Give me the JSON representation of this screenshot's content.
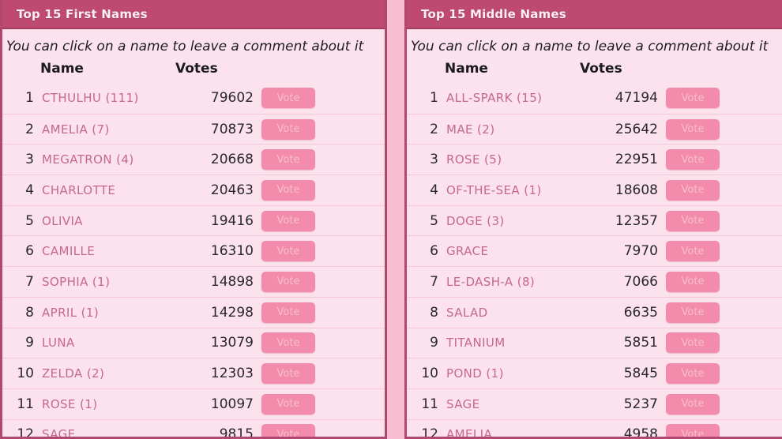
{
  "colors": {
    "page_background": "#f8bdd1",
    "panel_background": "#fbe2ec",
    "panel_border": "#b1486f",
    "header_bar": "#be4a72",
    "header_text": "#fceff5",
    "name_text": "#c6688d",
    "number_text": "#28282d",
    "row_divider": "#f3c6d8",
    "vote_button_bg": "#f28bac",
    "vote_button_text": "#f9bdcf"
  },
  "panels": [
    {
      "title": "Top 15 First Names",
      "instruction": "You can click on a name to leave a comment about it",
      "columns": {
        "name": "Name",
        "votes": "Votes"
      },
      "vote_button_label": "Vote",
      "rows": [
        {
          "rank": "1",
          "name": "CTHULHU (111)",
          "votes": "79602"
        },
        {
          "rank": "2",
          "name": "AMELIA (7)",
          "votes": "70873"
        },
        {
          "rank": "3",
          "name": "MEGATRON (4)",
          "votes": "20668"
        },
        {
          "rank": "4",
          "name": "CHARLOTTE",
          "votes": "20463"
        },
        {
          "rank": "5",
          "name": "OLIVIA",
          "votes": "19416"
        },
        {
          "rank": "6",
          "name": "CAMILLE",
          "votes": "16310"
        },
        {
          "rank": "7",
          "name": "SOPHIA (1)",
          "votes": "14898"
        },
        {
          "rank": "8",
          "name": "APRIL (1)",
          "votes": "14298"
        },
        {
          "rank": "9",
          "name": "LUNA",
          "votes": "13079"
        },
        {
          "rank": "10",
          "name": "ZELDA (2)",
          "votes": "12303"
        },
        {
          "rank": "11",
          "name": "ROSE (1)",
          "votes": "10097"
        },
        {
          "rank": "12",
          "name": "SAGE",
          "votes": "9815"
        }
      ]
    },
    {
      "title": "Top 15 Middle Names",
      "instruction": "You can click on a name to leave a comment about it",
      "columns": {
        "name": "Name",
        "votes": "Votes"
      },
      "vote_button_label": "Vote",
      "rows": [
        {
          "rank": "1",
          "name": "ALL-SPARK (15)",
          "votes": "47194"
        },
        {
          "rank": "2",
          "name": "MAE (2)",
          "votes": "25642"
        },
        {
          "rank": "3",
          "name": "ROSE (5)",
          "votes": "22951"
        },
        {
          "rank": "4",
          "name": "OF-THE-SEA (1)",
          "votes": "18608"
        },
        {
          "rank": "5",
          "name": "DOGE (3)",
          "votes": "12357"
        },
        {
          "rank": "6",
          "name": "GRACE",
          "votes": "7970"
        },
        {
          "rank": "7",
          "name": "LE-DASH-A (8)",
          "votes": "7066"
        },
        {
          "rank": "8",
          "name": "SALAD",
          "votes": "6635"
        },
        {
          "rank": "9",
          "name": "TITANIUM",
          "votes": "5851"
        },
        {
          "rank": "10",
          "name": "POND (1)",
          "votes": "5845"
        },
        {
          "rank": "11",
          "name": "SAGE",
          "votes": "5237"
        },
        {
          "rank": "12",
          "name": "AMELIA",
          "votes": "4958"
        }
      ]
    }
  ]
}
